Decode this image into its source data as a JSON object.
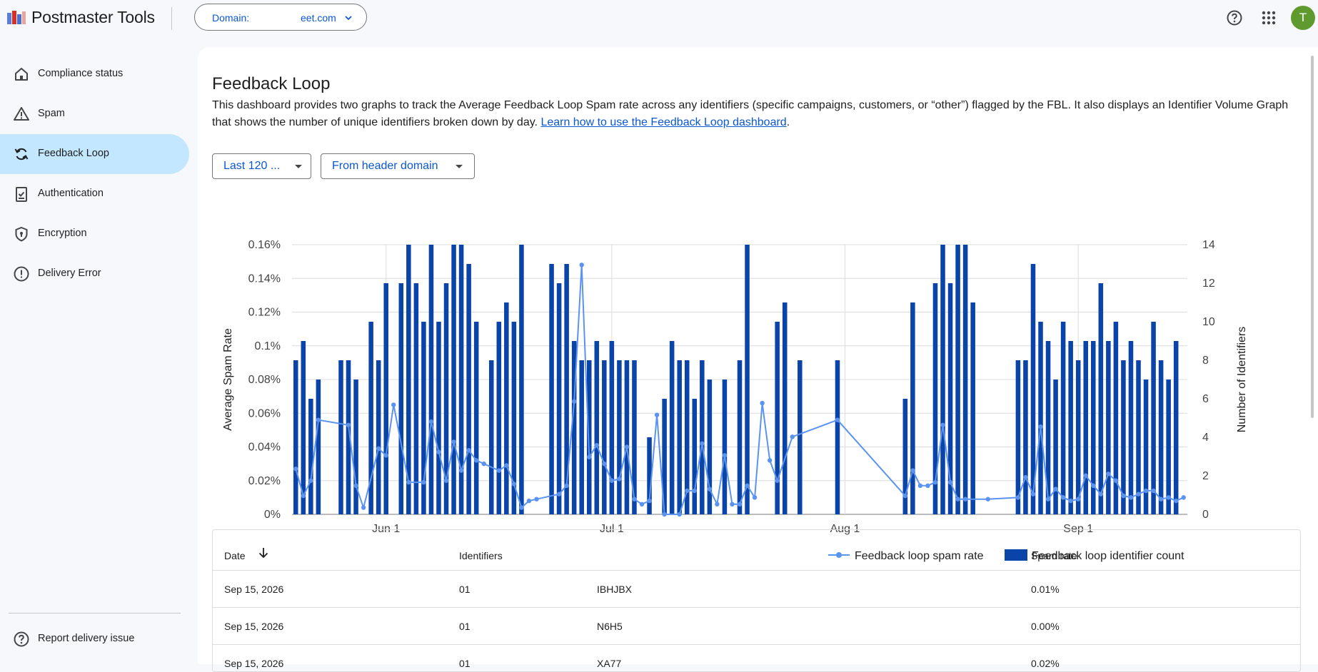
{
  "header": {
    "app_title": "Postmaster Tools",
    "domain_label": "Domain:",
    "domain_value": "eet.com",
    "avatar_letter": "T",
    "icons": [
      "logo-icon",
      "chevron-down-icon",
      "help-icon",
      "apps-grid-icon"
    ],
    "avatar_color": "#5f9a2e"
  },
  "sidebar": {
    "items": [
      {
        "label": "Compliance status",
        "icon": "home-icon"
      },
      {
        "label": "Spam",
        "icon": "warning-icon"
      },
      {
        "label": "Feedback Loop",
        "icon": "refresh-icon",
        "active": true
      },
      {
        "label": "Authentication",
        "icon": "clipboard-check-icon"
      },
      {
        "label": "Encryption",
        "icon": "shield-icon"
      },
      {
        "label": "Delivery Error",
        "icon": "error-circle-icon"
      }
    ],
    "footer_label": "Report delivery issue",
    "active_color": "#c2e7ff"
  },
  "main": {
    "title": "Feedback Loop",
    "description": "This dashboard provides two graphs to track the Average Feedback Loop Spam rate across any identifiers (specific campaigns, customers, or “other”) flagged by the FBL. It also displays an Identifier Volume Graph that shows the number of unique identifiers broken down by day.",
    "learn_link": "Learn how to use the Feedback Loop dashboard",
    "period_suffix": ".",
    "filters": {
      "range": "Last 120 ...",
      "domain_type": "From header domain"
    }
  },
  "chart_data": {
    "type": "bar",
    "title": "",
    "y_left_label": "Average Spam Rate",
    "y_right_label": "Number of Identifiers",
    "y_left_ticks": [
      "0%",
      "0.02%",
      "0.04%",
      "0.06%",
      "0.08%",
      "0.1%",
      "0.12%",
      "0.14%",
      "0.16%"
    ],
    "y_left_range": [
      0,
      0.16
    ],
    "y_right_ticks": [
      "0",
      "2",
      "4",
      "6",
      "8",
      "10",
      "12",
      "14"
    ],
    "y_right_range": [
      0,
      14
    ],
    "x_ticks": [
      "Jun 1",
      "Jul 1",
      "Aug 1",
      "Sep 1"
    ],
    "x_range": [
      "2026-05-20",
      "2026-09-15"
    ],
    "legend": [
      "Feedback loop spam rate",
      "Feedback loop identifier count"
    ],
    "legend_position": "bottom-right",
    "colors": {
      "bars": "#0b44a8",
      "line": "#5b93f0",
      "grid": "#dcdcdc"
    },
    "series": [
      {
        "name": "Feedback loop identifier count",
        "kind": "bar",
        "points": [
          [
            "2026-05-20",
            8
          ],
          [
            "2026-05-21",
            9
          ],
          [
            "2026-05-22",
            6
          ],
          [
            "2026-05-23",
            7
          ],
          [
            "2026-05-26",
            8
          ],
          [
            "2026-05-27",
            8
          ],
          [
            "2026-05-28",
            7
          ],
          [
            "2026-05-30",
            10
          ],
          [
            "2026-05-31",
            8
          ],
          [
            "2026-06-01",
            12
          ],
          [
            "2026-06-03",
            12
          ],
          [
            "2026-06-04",
            14
          ],
          [
            "2026-06-05",
            12
          ],
          [
            "2026-06-06",
            10
          ],
          [
            "2026-06-07",
            14
          ],
          [
            "2026-06-08",
            10
          ],
          [
            "2026-06-09",
            12
          ],
          [
            "2026-06-10",
            14
          ],
          [
            "2026-06-11",
            14
          ],
          [
            "2026-06-12",
            13
          ],
          [
            "2026-06-13",
            10
          ],
          [
            "2026-06-15",
            8
          ],
          [
            "2026-06-16",
            10
          ],
          [
            "2026-06-17",
            11
          ],
          [
            "2026-06-18",
            10
          ],
          [
            "2026-06-19",
            14
          ],
          [
            "2026-06-23",
            13
          ],
          [
            "2026-06-24",
            12
          ],
          [
            "2026-06-25",
            13
          ],
          [
            "2026-06-26",
            9
          ],
          [
            "2026-06-27",
            8
          ],
          [
            "2026-06-28",
            8
          ],
          [
            "2026-06-29",
            9
          ],
          [
            "2026-06-30",
            8
          ],
          [
            "2026-07-01",
            9
          ],
          [
            "2026-07-02",
            8
          ],
          [
            "2026-07-03",
            8
          ],
          [
            "2026-07-04",
            8
          ],
          [
            "2026-07-06",
            4
          ],
          [
            "2026-07-08",
            6
          ],
          [
            "2026-07-09",
            9
          ],
          [
            "2026-07-10",
            8
          ],
          [
            "2026-07-11",
            8
          ],
          [
            "2026-07-12",
            6
          ],
          [
            "2026-07-13",
            8
          ],
          [
            "2026-07-14",
            7
          ],
          [
            "2026-07-16",
            7
          ],
          [
            "2026-07-18",
            8
          ],
          [
            "2026-07-19",
            14
          ],
          [
            "2026-07-23",
            10
          ],
          [
            "2026-07-24",
            11
          ],
          [
            "2026-07-26",
            8
          ],
          [
            "2026-07-31",
            8
          ],
          [
            "2026-08-09",
            6
          ],
          [
            "2026-08-10",
            11
          ],
          [
            "2026-08-13",
            12
          ],
          [
            "2026-08-14",
            14
          ],
          [
            "2026-08-15",
            12
          ],
          [
            "2026-08-16",
            14
          ],
          [
            "2026-08-17",
            14
          ],
          [
            "2026-08-18",
            11
          ],
          [
            "2026-08-24",
            8
          ],
          [
            "2026-08-25",
            8
          ],
          [
            "2026-08-26",
            13
          ],
          [
            "2026-08-27",
            10
          ],
          [
            "2026-08-28",
            9
          ],
          [
            "2026-08-29",
            7
          ],
          [
            "2026-08-30",
            10
          ],
          [
            "2026-08-31",
            9
          ],
          [
            "2026-09-01",
            8
          ],
          [
            "2026-09-02",
            9
          ],
          [
            "2026-09-03",
            9
          ],
          [
            "2026-09-04",
            12
          ],
          [
            "2026-09-05",
            9
          ],
          [
            "2026-09-06",
            10
          ],
          [
            "2026-09-07",
            8
          ],
          [
            "2026-09-08",
            9
          ],
          [
            "2026-09-09",
            8
          ],
          [
            "2026-09-10",
            7
          ],
          [
            "2026-09-11",
            10
          ],
          [
            "2026-09-12",
            8
          ],
          [
            "2026-09-13",
            7
          ],
          [
            "2026-09-14",
            9
          ]
        ]
      },
      {
        "name": "Feedback loop spam rate",
        "kind": "line",
        "points": [
          [
            "2026-05-20",
            0.027
          ],
          [
            "2026-05-21",
            0.011
          ],
          [
            "2026-05-22",
            0.02
          ],
          [
            "2026-05-23",
            0.056
          ],
          [
            "2026-05-27",
            0.053
          ],
          [
            "2026-05-28",
            0.017
          ],
          [
            "2026-05-29",
            0.004
          ],
          [
            "2026-05-31",
            0.039
          ],
          [
            "2026-06-01",
            0.035
          ],
          [
            "2026-06-02",
            0.065
          ],
          [
            "2026-06-04",
            0.019
          ],
          [
            "2026-06-06",
            0.019
          ],
          [
            "2026-06-07",
            0.055
          ],
          [
            "2026-06-08",
            0.037
          ],
          [
            "2026-06-09",
            0.02
          ],
          [
            "2026-06-10",
            0.043
          ],
          [
            "2026-06-11",
            0.026
          ],
          [
            "2026-06-12",
            0.038
          ],
          [
            "2026-06-13",
            0.032
          ],
          [
            "2026-06-14",
            0.03
          ],
          [
            "2026-06-16",
            0.026
          ],
          [
            "2026-06-17",
            0.029
          ],
          [
            "2026-06-18",
            0.018
          ],
          [
            "2026-06-19",
            0.004
          ],
          [
            "2026-06-20",
            0.008
          ],
          [
            "2026-06-21",
            0.009
          ],
          [
            "2026-06-24",
            0.012
          ],
          [
            "2026-06-25",
            0.017
          ],
          [
            "2026-06-26",
            0.067
          ],
          [
            "2026-06-27",
            0.148
          ],
          [
            "2026-06-28",
            0.034
          ],
          [
            "2026-06-29",
            0.041
          ],
          [
            "2026-06-30",
            0.03
          ],
          [
            "2026-07-01",
            0.02
          ],
          [
            "2026-07-02",
            0.021
          ],
          [
            "2026-07-03",
            0.04
          ],
          [
            "2026-07-04",
            0.009
          ],
          [
            "2026-07-05",
            0.006
          ],
          [
            "2026-07-06",
            0.008
          ],
          [
            "2026-07-07",
            0.059
          ],
          [
            "2026-07-08",
            0.0
          ],
          [
            "2026-07-10",
            0.0
          ],
          [
            "2026-07-11",
            0.014
          ],
          [
            "2026-07-12",
            0.014
          ],
          [
            "2026-07-13",
            0.042
          ],
          [
            "2026-07-14",
            0.015
          ],
          [
            "2026-07-15",
            0.006
          ],
          [
            "2026-07-16",
            0.035
          ],
          [
            "2026-07-17",
            0.006
          ],
          [
            "2026-07-18",
            0.006
          ],
          [
            "2026-07-19",
            0.017
          ],
          [
            "2026-07-20",
            0.01
          ],
          [
            "2026-07-21",
            0.066
          ],
          [
            "2026-07-22",
            0.032
          ],
          [
            "2026-07-23",
            0.02
          ],
          [
            "2026-07-25",
            0.046
          ],
          [
            "2026-07-31",
            0.056
          ],
          [
            "2026-08-09",
            0.011
          ],
          [
            "2026-08-10",
            0.026
          ],
          [
            "2026-08-11",
            0.017
          ],
          [
            "2026-08-12",
            0.017
          ],
          [
            "2026-08-13",
            0.019
          ],
          [
            "2026-08-14",
            0.053
          ],
          [
            "2026-08-15",
            0.019
          ],
          [
            "2026-08-16",
            0.009
          ],
          [
            "2026-08-17",
            0.009
          ],
          [
            "2026-08-20",
            0.009
          ],
          [
            "2026-08-24",
            0.01
          ],
          [
            "2026-08-25",
            0.022
          ],
          [
            "2026-08-26",
            0.012
          ],
          [
            "2026-08-27",
            0.052
          ],
          [
            "2026-08-28",
            0.009
          ],
          [
            "2026-08-29",
            0.015
          ],
          [
            "2026-08-30",
            0.01
          ],
          [
            "2026-08-31",
            0.008
          ],
          [
            "2026-09-01",
            0.009
          ],
          [
            "2026-09-02",
            0.023
          ],
          [
            "2026-09-03",
            0.017
          ],
          [
            "2026-09-04",
            0.012
          ],
          [
            "2026-09-05",
            0.024
          ],
          [
            "2026-09-06",
            0.02
          ],
          [
            "2026-09-07",
            0.011
          ],
          [
            "2026-09-08",
            0.01
          ],
          [
            "2026-09-09",
            0.012
          ],
          [
            "2026-09-10",
            0.014
          ],
          [
            "2026-09-11",
            0.014
          ],
          [
            "2026-09-12",
            0.009
          ],
          [
            "2026-09-13",
            0.01
          ],
          [
            "2026-09-14",
            0.008
          ],
          [
            "2026-09-15",
            0.01
          ]
        ]
      }
    ]
  },
  "table": {
    "headers": {
      "date": "Date",
      "identifiers": "Identifiers",
      "spam_rate": "Spam rate"
    },
    "rows": [
      {
        "date": "Sep 15, 2026",
        "id_start": "01",
        "id_end": "IBHJBX",
        "rate": "0.01%"
      },
      {
        "date": "Sep 15, 2026",
        "id_start": "01",
        "id_end": "N6H5",
        "rate": "0.00%"
      },
      {
        "date": "Sep 15, 2026",
        "id_start": "01",
        "id_end": "XA77",
        "rate": "0.02%"
      }
    ]
  }
}
